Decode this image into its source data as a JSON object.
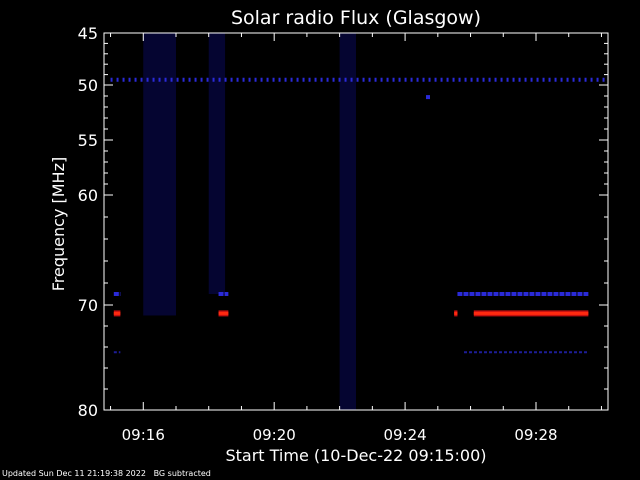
{
  "chart_data": {
    "type": "heatmap",
    "title": "Solar radio Flux (Glasgow)",
    "xlabel": "Start Time (10-Dec-22 09:15:00)",
    "ylabel": "Frequency [MHz]",
    "x_ticks": [
      "09:16",
      "09:20",
      "09:24",
      "09:28"
    ],
    "x_tick_minutes": [
      1,
      5,
      9,
      13
    ],
    "xlim_minutes": [
      -0.2,
      15.2
    ],
    "y_ticks": [
      45,
      50,
      55,
      60,
      70,
      80
    ],
    "ylim_mhz": [
      45,
      80
    ],
    "y_scale": "nonlinear",
    "colors": {
      "background": "#000000",
      "faint_emission": "#0a0a5a",
      "band_blue": "#2a2ad8",
      "band_core": "#ff2a10",
      "band_edge": "#c41010",
      "axes": "#ffffff"
    },
    "features": [
      {
        "kind": "faint_patch",
        "t_range_min": [
          1.0,
          2.0
        ],
        "f_range_mhz": [
          45,
          71
        ]
      },
      {
        "kind": "faint_patch",
        "t_range_min": [
          3.0,
          3.5
        ],
        "f_range_mhz": [
          45,
          69
        ]
      },
      {
        "kind": "faint_patch",
        "t_range_min": [
          7.0,
          7.5
        ],
        "f_range_mhz": [
          45,
          80
        ]
      },
      {
        "kind": "dotted_line",
        "f_mhz": 49.5,
        "t_range_min": [
          0,
          15.2
        ],
        "intensity": "medium"
      },
      {
        "kind": "point",
        "t_min": 9.7,
        "f_mhz": 51.1,
        "intensity": "medium"
      },
      {
        "kind": "band",
        "f_mhz": 70.8,
        "segments_min": [
          [
            0.1,
            0.3
          ],
          [
            3.3,
            3.6
          ],
          [
            10.5,
            10.6
          ],
          [
            11.1,
            14.6
          ]
        ],
        "intensity": "high"
      },
      {
        "kind": "band",
        "f_mhz": 69.0,
        "segments_min": [
          [
            0.1,
            0.3
          ],
          [
            3.3,
            3.6
          ],
          [
            10.6,
            14.6
          ]
        ],
        "intensity": "medium"
      },
      {
        "kind": "band",
        "f_mhz": 74.5,
        "segments_min": [
          [
            0.1,
            0.3
          ],
          [
            10.8,
            14.6
          ]
        ],
        "intensity": "low"
      }
    ]
  },
  "footer": {
    "updated": "Updated Sun Dec 11 21:19:38 2022",
    "note": "BG subtracted"
  }
}
